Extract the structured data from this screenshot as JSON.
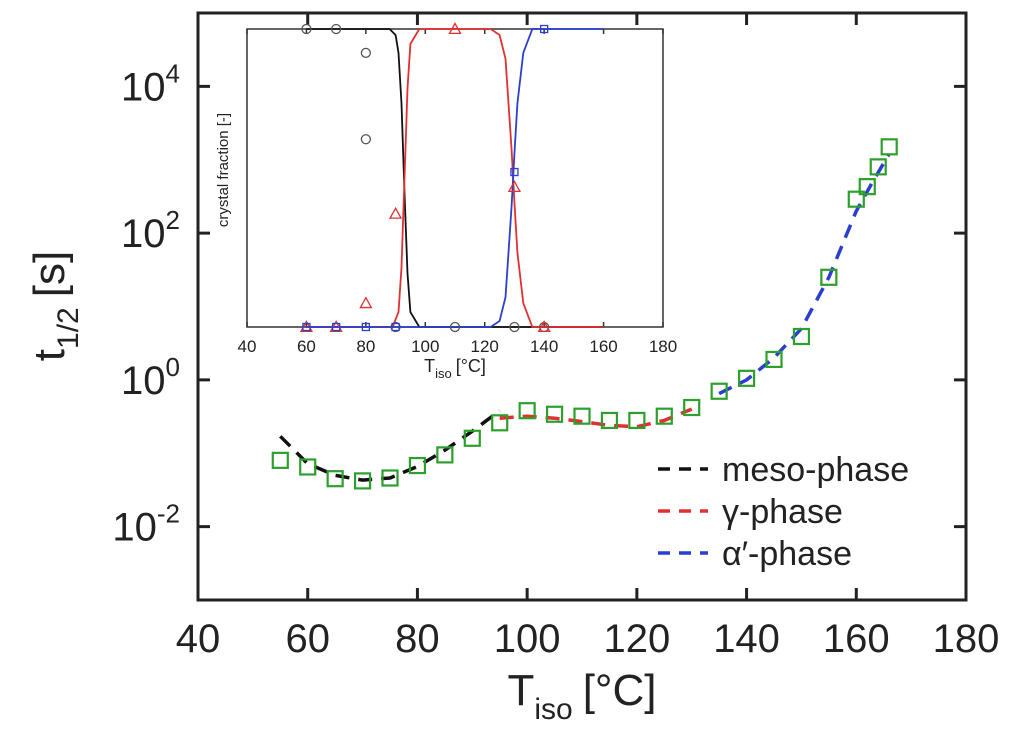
{
  "chart_data": [
    {
      "type": "scatter",
      "title": "",
      "xlabel": "T",
      "xlabel_sub": "iso",
      "xlabel_unit": "[°C]",
      "ylabel": "t",
      "ylabel_sub": "1/2",
      "ylabel_unit": "[s]",
      "xlim": [
        40,
        180
      ],
      "ylim": [
        0.001,
        100000
      ],
      "yscale": "log",
      "x_ticks": [
        "40",
        "60",
        "80",
        "100",
        "120",
        "140",
        "160",
        "180"
      ],
      "y_ticks": [
        {
          "base": "10",
          "exp": "-2",
          "value": 0.01
        },
        {
          "base": "10",
          "exp": "0",
          "value": 1
        },
        {
          "base": "10",
          "exp": "2",
          "value": 100
        },
        {
          "base": "10",
          "exp": "4",
          "value": 10000
        }
      ],
      "grid": false,
      "legend_position": "bottom-right",
      "legend": [
        {
          "label": "meso-phase",
          "color": "#111111"
        },
        {
          "label": "γ-phase",
          "color": "#e03030"
        },
        {
          "label": "α′-phase",
          "color": "#2a3fd0"
        }
      ],
      "markers": {
        "color": "#2ca02c",
        "shape": "square-open",
        "x": [
          55,
          60,
          65,
          70,
          75,
          80,
          85,
          90,
          95,
          100,
          105,
          110,
          115,
          120,
          125,
          130,
          135,
          140,
          145,
          150,
          155,
          160,
          162,
          164,
          166
        ],
        "y": [
          0.08,
          0.065,
          0.045,
          0.042,
          0.046,
          0.068,
          0.095,
          0.16,
          0.26,
          0.38,
          0.34,
          0.32,
          0.28,
          0.28,
          0.32,
          0.42,
          0.7,
          1.05,
          1.9,
          3.9,
          25,
          290,
          430,
          800,
          1500
        ]
      },
      "series": [
        {
          "name": "meso-phase",
          "color": "#111111",
          "style": "dashed",
          "x": [
            55,
            60,
            65,
            70,
            75,
            80,
            85,
            90,
            95
          ],
          "y": [
            0.17,
            0.072,
            0.05,
            0.043,
            0.046,
            0.066,
            0.11,
            0.2,
            0.38
          ]
        },
        {
          "name": "γ-phase",
          "color": "#e03030",
          "style": "dashed",
          "x": [
            95,
            100,
            105,
            110,
            115,
            120,
            125,
            130
          ],
          "y": [
            0.3,
            0.32,
            0.3,
            0.27,
            0.24,
            0.23,
            0.28,
            0.4
          ]
        },
        {
          "name": "α′-phase",
          "color": "#2a3fd0",
          "style": "dashed",
          "x": [
            135,
            140,
            145,
            150,
            155,
            160,
            163,
            166
          ],
          "y": [
            0.65,
            1.0,
            2.0,
            5.0,
            25,
            200,
            500,
            1200
          ]
        }
      ]
    },
    {
      "type": "line",
      "title": "",
      "inset": true,
      "xlabel": "T",
      "xlabel_sub": "iso",
      "xlabel_unit": "[°C]",
      "ylabel": "crystal fraction [-]",
      "xlim": [
        40,
        180
      ],
      "ylim": [
        0,
        1
      ],
      "x_ticks": [
        "40",
        "60",
        "80",
        "100",
        "120",
        "140",
        "160",
        "180"
      ],
      "grid": false,
      "series": [
        {
          "name": "",
          "color": "#111111",
          "x": [
            60,
            88,
            90,
            91,
            92,
            93,
            94,
            95,
            98,
            160
          ],
          "y": [
            1,
            1,
            0.98,
            0.92,
            0.75,
            0.45,
            0.18,
            0.05,
            0,
            0
          ],
          "points": {
            "shape": "circle-open",
            "x": [
              60,
              70,
              80,
              80,
              90,
              110,
              130,
              140
            ],
            "y": [
              1,
              1,
              0.92,
              0.63,
              0,
              0,
              0,
              0
            ]
          }
        },
        {
          "name": "",
          "color": "#e03030",
          "x": [
            60,
            89,
            91,
            92,
            93,
            94,
            95,
            98,
            122,
            125,
            127,
            128,
            129,
            130,
            131,
            133,
            136,
            160
          ],
          "y": [
            0,
            0,
            0.05,
            0.2,
            0.5,
            0.8,
            0.95,
            1,
            1,
            0.98,
            0.9,
            0.75,
            0.6,
            0.42,
            0.25,
            0.08,
            0,
            0
          ],
          "points": {
            "shape": "triangle-open",
            "x": [
              60,
              70,
              80,
              90,
              110,
              130,
              140
            ],
            "y": [
              0,
              0,
              0.08,
              0.38,
              1,
              0.47,
              0
            ]
          }
        },
        {
          "name": "",
          "color": "#2a3fd0",
          "x": [
            60,
            122,
            125,
            127,
            128,
            129,
            130,
            131,
            133,
            136,
            160
          ],
          "y": [
            0,
            0,
            0.02,
            0.1,
            0.25,
            0.4,
            0.58,
            0.75,
            0.92,
            1,
            1
          ],
          "points": {
            "shape": "square-open",
            "x": [
              60,
              70,
              80,
              90,
              130,
              140
            ],
            "y": [
              0,
              0,
              0,
              0,
              0.52,
              1
            ]
          }
        }
      ]
    }
  ]
}
